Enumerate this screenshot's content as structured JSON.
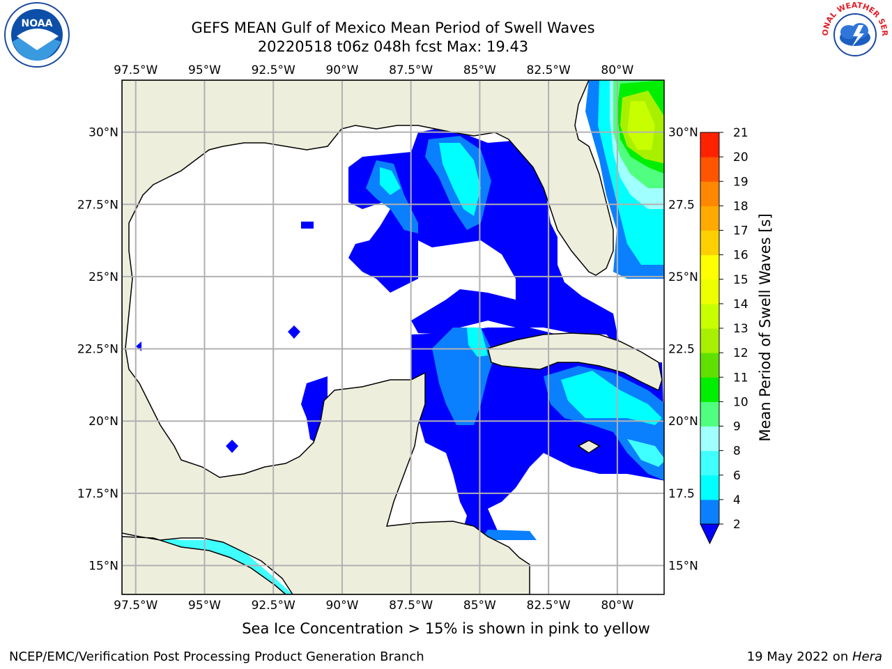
{
  "title": {
    "line1": "GEFS MEAN Gulf of Mexico Mean Period of Swell Waves",
    "line2": "20220518 t06z 048h fcst   Max: 19.43"
  },
  "logos": {
    "left": {
      "icon": "noaa-logo",
      "text": "NOAA"
    },
    "right": {
      "icon": "nws-logo",
      "text": "NATIONAL WEATHER SERVICE"
    }
  },
  "map": {
    "region": "Gulf of Mexico",
    "lon_range": [
      -98.0,
      -78.3
    ],
    "lat_range": [
      14.0,
      31.8
    ],
    "lon_labels_top": [
      "97.5°W",
      "95°W",
      "92.5°W",
      "90°W",
      "87.5°W",
      "85°W",
      "82.5°W",
      "80°W"
    ],
    "lon_labels_bottom": [
      "97.5°W",
      "95°W",
      "92.5°W",
      "90°W",
      "87.5°W",
      "85°W",
      "82.5°W",
      "80°W"
    ],
    "lat_labels_left": [
      "30°N",
      "27.5°N",
      "25°N",
      "22.5°N",
      "20°N",
      "17.5°N",
      "15°N"
    ],
    "lat_labels_right": [
      "30°N",
      "27.5",
      "25°N",
      "22.5",
      "20°N",
      "17.5",
      "15°N"
    ],
    "land_color": "#eeeedd",
    "gridlines": true
  },
  "colorbar": {
    "label": "Mean Period of Swell Waves [s]",
    "ticks": [
      "2",
      "4",
      "6",
      "8",
      "9",
      "10",
      "11",
      "12",
      "13",
      "14",
      "15",
      "16",
      "17",
      "18",
      "19",
      "20",
      "21"
    ],
    "colors": [
      "#0000ff",
      "#0a80ff",
      "#00ffff",
      "#40ffff",
      "#a0ffff",
      "#50ff80",
      "#00ee00",
      "#60e000",
      "#a8f000",
      "#c8ff00",
      "#eeff00",
      "#ffff00",
      "#ffd000",
      "#ffaa00",
      "#ff8800",
      "#ff5500",
      "#ff2200",
      "#ff0000"
    ],
    "extend": "min"
  },
  "note": "Sea Ice Concentration > 15% is shown in pink to yellow",
  "footer": {
    "left": "NCEP/EMC/Verification Post Processing Product Generation Branch",
    "right_date": "19 May 2022 on ",
    "right_host": "Hera"
  }
}
